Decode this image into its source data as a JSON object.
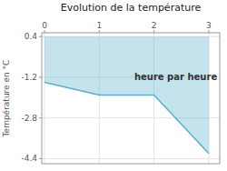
{
  "chart_data": {
    "type": "area",
    "title": "Evolution de la température",
    "y_label": "Température en °C",
    "annotation": "heure par heure",
    "x": [
      0,
      1,
      2,
      3
    ],
    "values": [
      -1.4,
      -1.9,
      -1.9,
      -4.2
    ],
    "fill_to": 0.4,
    "color": "#5ab0c8",
    "xlim": [
      -0.05,
      3.2
    ],
    "ylim": [
      -4.6,
      0.55
    ],
    "xticks": [
      0,
      1,
      2,
      3
    ],
    "yticks": [
      0.4,
      -1.2,
      -2.8,
      -4.4
    ],
    "grid": true
  }
}
